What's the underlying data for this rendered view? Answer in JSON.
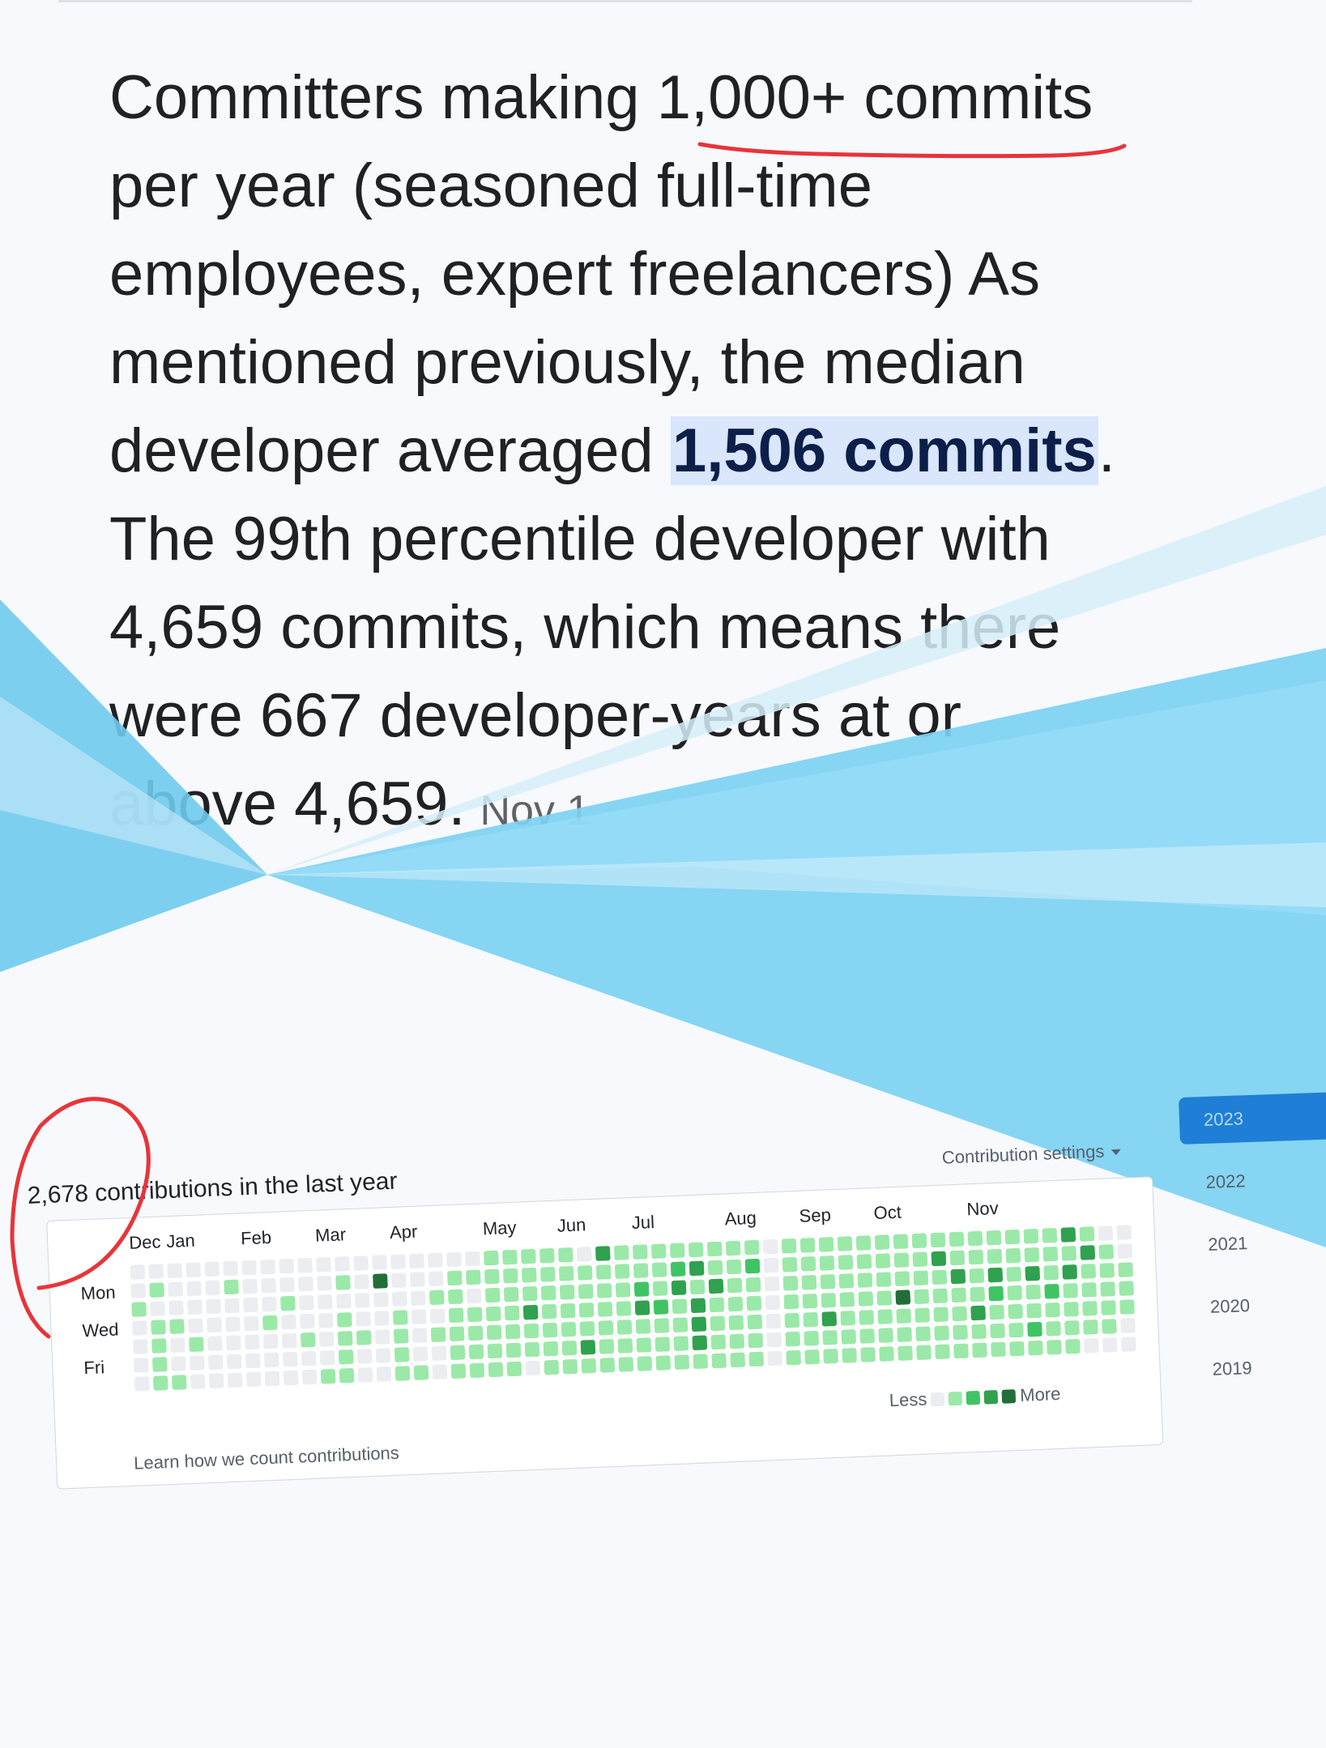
{
  "article": {
    "lines": [
      {
        "pre": "Committers making ",
        "hl": "",
        "post": "1,000+ commits"
      },
      {
        "pre": "per year (seasoned full-time",
        "hl": "",
        "post": ""
      },
      {
        "pre": "employees, expert freelancers) As",
        "hl": "",
        "post": ""
      },
      {
        "pre": "mentioned previously, the median",
        "hl": "",
        "post": ""
      },
      {
        "pre": "developer averaged ",
        "hl": "1,506 commits",
        "post": "."
      },
      {
        "pre": "The 99th percentile developer with",
        "hl": "",
        "post": ""
      },
      {
        "pre": "4,659 commits, which means there",
        "hl": "",
        "post": ""
      },
      {
        "pre": "were 667 developer-years at or",
        "hl": "",
        "post": ""
      },
      {
        "pre": "above 4,659.",
        "hl": "",
        "post": ""
      }
    ],
    "date_fragment": "Nov 1"
  },
  "contributions": {
    "total_text": "2,678 contributions in the last year",
    "settings_label": "Contribution settings",
    "months": [
      "Dec",
      "Jan",
      "Feb",
      "Mar",
      "Apr",
      "May",
      "Jun",
      "Jul",
      "Aug",
      "Sep",
      "Oct",
      "Nov"
    ],
    "month_week_index": [
      0,
      2,
      6,
      10,
      14,
      19,
      23,
      27,
      32,
      36,
      40,
      45
    ],
    "days": [
      "Mon",
      "Wed",
      "Fri"
    ],
    "learn_link": "Learn how we count contributions",
    "legend_less": "Less",
    "legend_more": "More",
    "level_colors": [
      "#ebedf0",
      "#9be9a8",
      "#40c463",
      "#30a14e",
      "#216e39"
    ],
    "weeks": [
      [
        0,
        0,
        1,
        0,
        0,
        0,
        0
      ],
      [
        0,
        1,
        0,
        1,
        1,
        1,
        1
      ],
      [
        0,
        0,
        0,
        1,
        0,
        0,
        1
      ],
      [
        0,
        0,
        0,
        0,
        1,
        0,
        0
      ],
      [
        0,
        0,
        0,
        0,
        0,
        0,
        0
      ],
      [
        0,
        1,
        0,
        0,
        0,
        0,
        0
      ],
      [
        0,
        0,
        0,
        0,
        0,
        0,
        0
      ],
      [
        0,
        0,
        0,
        1,
        0,
        0,
        0
      ],
      [
        0,
        0,
        1,
        0,
        0,
        0,
        0
      ],
      [
        0,
        0,
        0,
        0,
        1,
        0,
        0
      ],
      [
        0,
        0,
        0,
        0,
        0,
        0,
        1
      ],
      [
        0,
        1,
        0,
        1,
        1,
        1,
        1
      ],
      [
        0,
        0,
        0,
        0,
        1,
        0,
        0
      ],
      [
        0,
        4,
        0,
        0,
        0,
        0,
        0
      ],
      [
        0,
        0,
        0,
        1,
        1,
        1,
        1
      ],
      [
        0,
        0,
        0,
        0,
        0,
        0,
        1
      ],
      [
        0,
        0,
        1,
        0,
        1,
        0,
        0
      ],
      [
        0,
        1,
        1,
        1,
        1,
        1,
        1
      ],
      [
        0,
        1,
        0,
        1,
        1,
        1,
        1
      ],
      [
        1,
        1,
        1,
        1,
        1,
        1,
        1
      ],
      [
        1,
        1,
        1,
        1,
        1,
        1,
        1
      ],
      [
        1,
        1,
        1,
        3,
        1,
        1,
        0
      ],
      [
        1,
        1,
        1,
        1,
        1,
        1,
        1
      ],
      [
        1,
        1,
        1,
        1,
        1,
        1,
        1
      ],
      [
        0,
        1,
        1,
        1,
        1,
        3,
        1
      ],
      [
        3,
        1,
        1,
        1,
        1,
        1,
        1
      ],
      [
        1,
        1,
        1,
        1,
        1,
        1,
        1
      ],
      [
        1,
        1,
        2,
        3,
        1,
        1,
        1
      ],
      [
        1,
        1,
        1,
        2,
        1,
        1,
        1
      ],
      [
        1,
        2,
        3,
        1,
        1,
        1,
        1
      ],
      [
        1,
        3,
        1,
        3,
        3,
        3,
        1
      ],
      [
        1,
        1,
        3,
        1,
        1,
        1,
        1
      ],
      [
        1,
        1,
        1,
        1,
        1,
        1,
        1
      ],
      [
        1,
        2,
        1,
        1,
        1,
        1,
        1
      ],
      [
        0,
        0,
        0,
        0,
        0,
        0,
        0
      ],
      [
        1,
        1,
        1,
        1,
        1,
        1,
        1
      ],
      [
        1,
        1,
        1,
        1,
        1,
        1,
        1
      ],
      [
        1,
        1,
        1,
        1,
        3,
        1,
        1
      ],
      [
        1,
        1,
        1,
        1,
        1,
        1,
        1
      ],
      [
        1,
        1,
        1,
        1,
        1,
        1,
        1
      ],
      [
        1,
        1,
        1,
        1,
        1,
        1,
        1
      ],
      [
        1,
        1,
        1,
        4,
        1,
        1,
        1
      ],
      [
        1,
        1,
        1,
        1,
        1,
        1,
        1
      ],
      [
        1,
        3,
        1,
        1,
        1,
        1,
        1
      ],
      [
        1,
        1,
        3,
        1,
        1,
        1,
        1
      ],
      [
        1,
        1,
        1,
        1,
        3,
        1,
        1
      ],
      [
        1,
        1,
        3,
        2,
        1,
        1,
        1
      ],
      [
        1,
        1,
        1,
        1,
        1,
        1,
        1
      ],
      [
        1,
        1,
        3,
        1,
        1,
        2,
        1
      ],
      [
        1,
        1,
        1,
        2,
        1,
        1,
        1
      ],
      [
        3,
        1,
        3,
        1,
        1,
        1,
        1
      ],
      [
        1,
        3,
        1,
        1,
        1,
        1,
        0
      ],
      [
        0,
        1,
        1,
        1,
        1,
        1,
        0
      ],
      [
        0,
        0,
        1,
        1,
        1,
        0,
        0
      ]
    ]
  },
  "years": [
    "2023",
    "2022",
    "2021",
    "2020",
    "2019"
  ],
  "selected_year": "2023"
}
